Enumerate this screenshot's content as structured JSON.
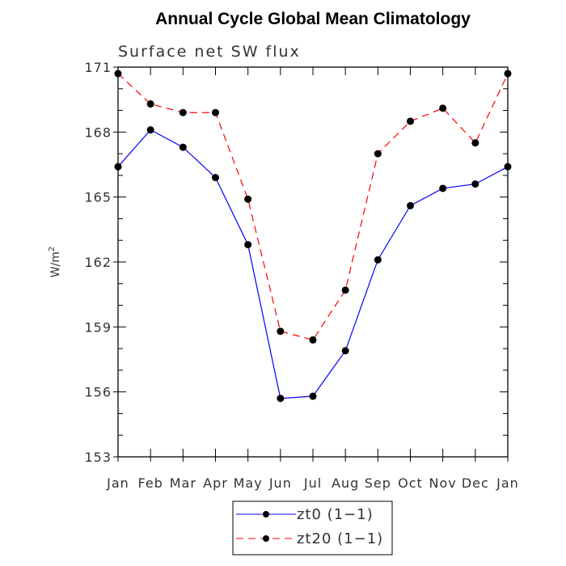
{
  "chart_data": {
    "type": "line",
    "title": "Annual Cycle Global Mean Climatology",
    "subtitle": "Surface net SW flux",
    "xlabel": "",
    "ylabel": "W/m",
    "ylabel_superscript": "2",
    "categories": [
      "Jan",
      "Feb",
      "Mar",
      "Apr",
      "May",
      "Jun",
      "Jul",
      "Aug",
      "Sep",
      "Oct",
      "Nov",
      "Dec",
      "Jan"
    ],
    "ylim": [
      153,
      171
    ],
    "yticks": [
      153,
      156,
      159,
      162,
      165,
      168,
      171
    ],
    "yticks_labels": [
      "153",
      "156",
      "159",
      "162",
      "165",
      "168",
      "171"
    ],
    "grid": false,
    "legend_position": "bottom-center",
    "series": [
      {
        "name": "zt0 (1−1)",
        "color": "#0000ff",
        "dash": "solid",
        "values": [
          166.4,
          168.1,
          167.3,
          165.9,
          162.8,
          155.7,
          155.8,
          157.9,
          162.1,
          164.6,
          165.4,
          165.6,
          166.4
        ]
      },
      {
        "name": "zt20 (1−1)",
        "color": "#ff0000",
        "dash": "dashed",
        "values": [
          170.7,
          169.3,
          168.9,
          168.9,
          164.9,
          158.8,
          158.4,
          160.7,
          167.0,
          168.5,
          169.1,
          167.5,
          170.7
        ]
      }
    ]
  }
}
